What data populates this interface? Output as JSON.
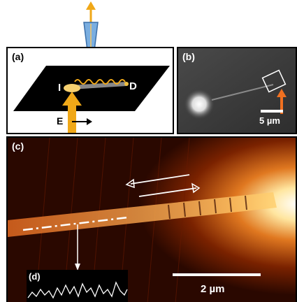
{
  "panels": {
    "a": {
      "label": "(a)",
      "input_label": "I",
      "detect_label": "D",
      "field_label": "E"
    },
    "b": {
      "label": "(b)",
      "scale_label": "5 µm"
    },
    "c": {
      "label": "(c)",
      "scale_label": "2 µm"
    },
    "d": {
      "label": "(d)"
    }
  },
  "colors": {
    "laser": "#f0a818",
    "tip": "#5a8fc8",
    "hot": "#ffe6a0",
    "background_c": "#2a0800",
    "arrow_orange": "#f07020"
  }
}
